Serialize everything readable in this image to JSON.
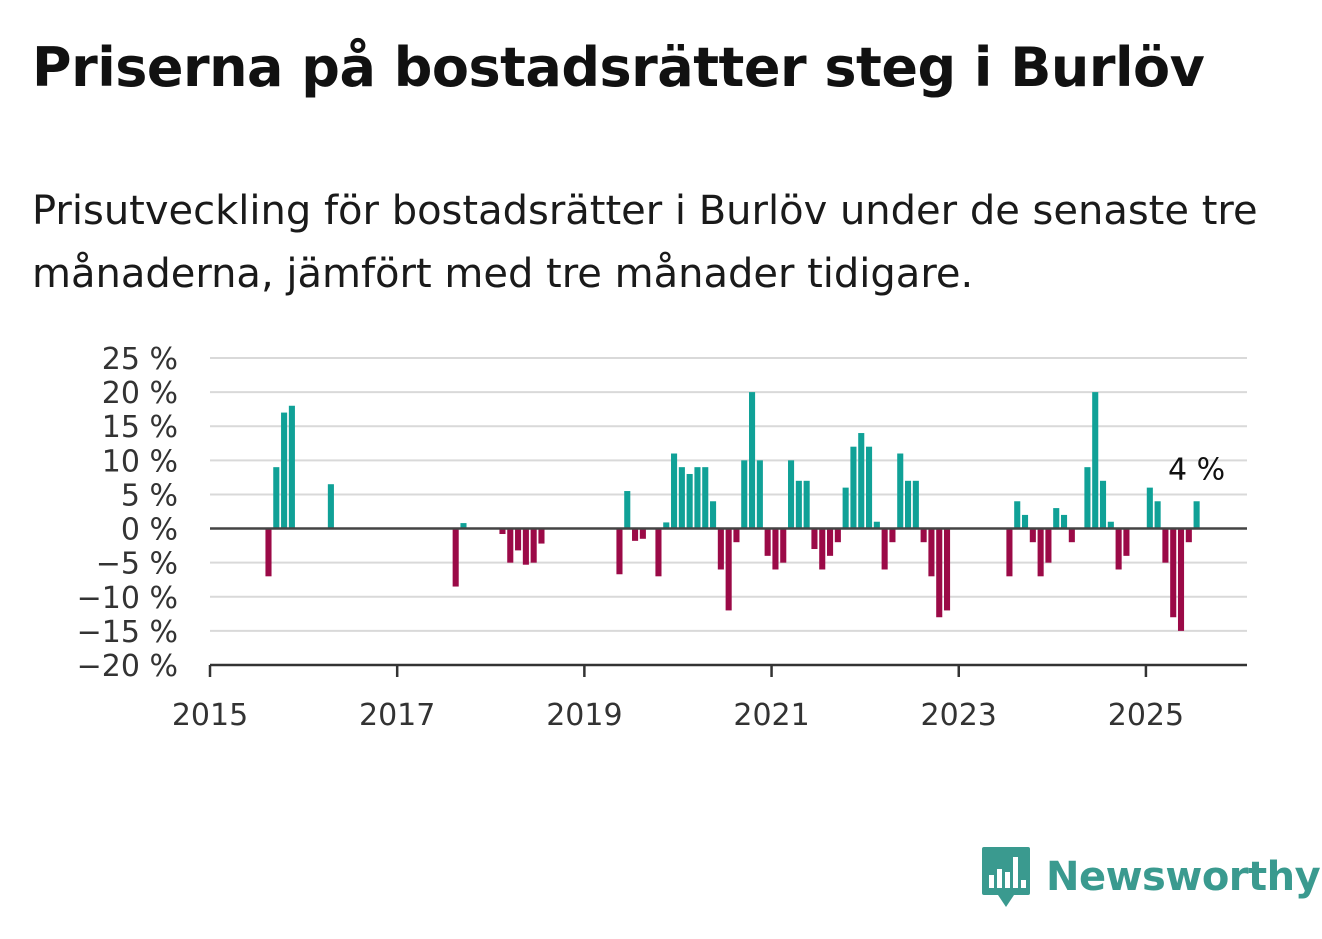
{
  "title": "Priserna på bostadsrätter steg i Burlöv",
  "subtitle": "Prisutveckling för bostadsrätter i Burlöv under de senaste tre månaderna, jämfört med tre månader tidigare.",
  "brand": {
    "name": "Newsworthy",
    "icon": "newsworthy-logo-icon",
    "color": "#3a9a8f"
  },
  "colors": {
    "positive": "#10a197",
    "negative": "#9b0a47",
    "grid": "#d9d9d9",
    "zero_line": "#444444"
  },
  "chart_data": {
    "type": "bar",
    "title": "",
    "xlabel": "",
    "ylabel": "",
    "ylim": [
      -20,
      25
    ],
    "xlim": [
      2015,
      2026.08
    ],
    "y_ticks": [
      -20,
      -15,
      -10,
      -5,
      0,
      5,
      10,
      15,
      20,
      25
    ],
    "y_tick_labels": [
      "−20 %",
      "−15 %",
      "−10 %",
      "−5 %",
      "0 %",
      "5 %",
      "10 %",
      "15 %",
      "20 %",
      "25 %"
    ],
    "x_ticks": [
      2015,
      2017,
      2019,
      2021,
      2023,
      2025
    ],
    "x_tick_labels": [
      "2015",
      "2017",
      "2019",
      "2021",
      "2023",
      "2025"
    ],
    "grid": true,
    "annotation": {
      "text": "4 %",
      "x": "2025-07",
      "value": 4
    },
    "x": [
      "2015-08",
      "2015-09",
      "2015-10",
      "2015-11",
      "2016-04",
      "2017-08",
      "2017-09",
      "2018-02",
      "2018-03",
      "2018-04",
      "2018-05",
      "2018-06",
      "2018-07",
      "2019-05",
      "2019-06",
      "2019-07",
      "2019-08",
      "2019-10",
      "2019-11",
      "2019-12",
      "2020-01",
      "2020-02",
      "2020-03",
      "2020-04",
      "2020-05",
      "2020-06",
      "2020-07",
      "2020-08",
      "2020-09",
      "2020-10",
      "2020-11",
      "2020-12",
      "2021-01",
      "2021-02",
      "2021-03",
      "2021-04",
      "2021-05",
      "2021-06",
      "2021-07",
      "2021-08",
      "2021-09",
      "2021-10",
      "2021-11",
      "2021-12",
      "2022-01",
      "2022-02",
      "2022-03",
      "2022-04",
      "2022-05",
      "2022-06",
      "2022-07",
      "2022-08",
      "2022-09",
      "2022-10",
      "2022-11",
      "2023-07",
      "2023-08",
      "2023-09",
      "2023-10",
      "2023-11",
      "2023-12",
      "2024-01",
      "2024-02",
      "2024-03",
      "2024-05",
      "2024-06",
      "2024-07",
      "2024-08",
      "2024-09",
      "2024-10",
      "2025-01",
      "2025-02",
      "2025-03",
      "2025-04",
      "2025-05",
      "2025-06",
      "2025-07"
    ],
    "values": [
      -7,
      9,
      17,
      18,
      6.5,
      -8.5,
      0.8,
      -0.8,
      -5,
      -3.2,
      -5.3,
      -5,
      -2.2,
      -6.7,
      5.5,
      -1.8,
      -1.5,
      -7,
      0.9,
      11,
      9,
      8,
      9,
      9,
      4,
      -6,
      -12,
      -2,
      10,
      20,
      10,
      -4,
      -6,
      -5,
      10,
      7,
      7,
      -3,
      -6,
      -4,
      -2,
      6,
      12,
      14,
      12,
      1,
      -6,
      -2,
      11,
      7,
      7,
      -2,
      -7,
      -13,
      -12,
      -7,
      4,
      2,
      -2,
      -7,
      -5,
      3,
      2,
      -2,
      9,
      20,
      7,
      1,
      -6,
      -4,
      6,
      4,
      -5,
      -13,
      -15,
      -2,
      4
    ]
  }
}
